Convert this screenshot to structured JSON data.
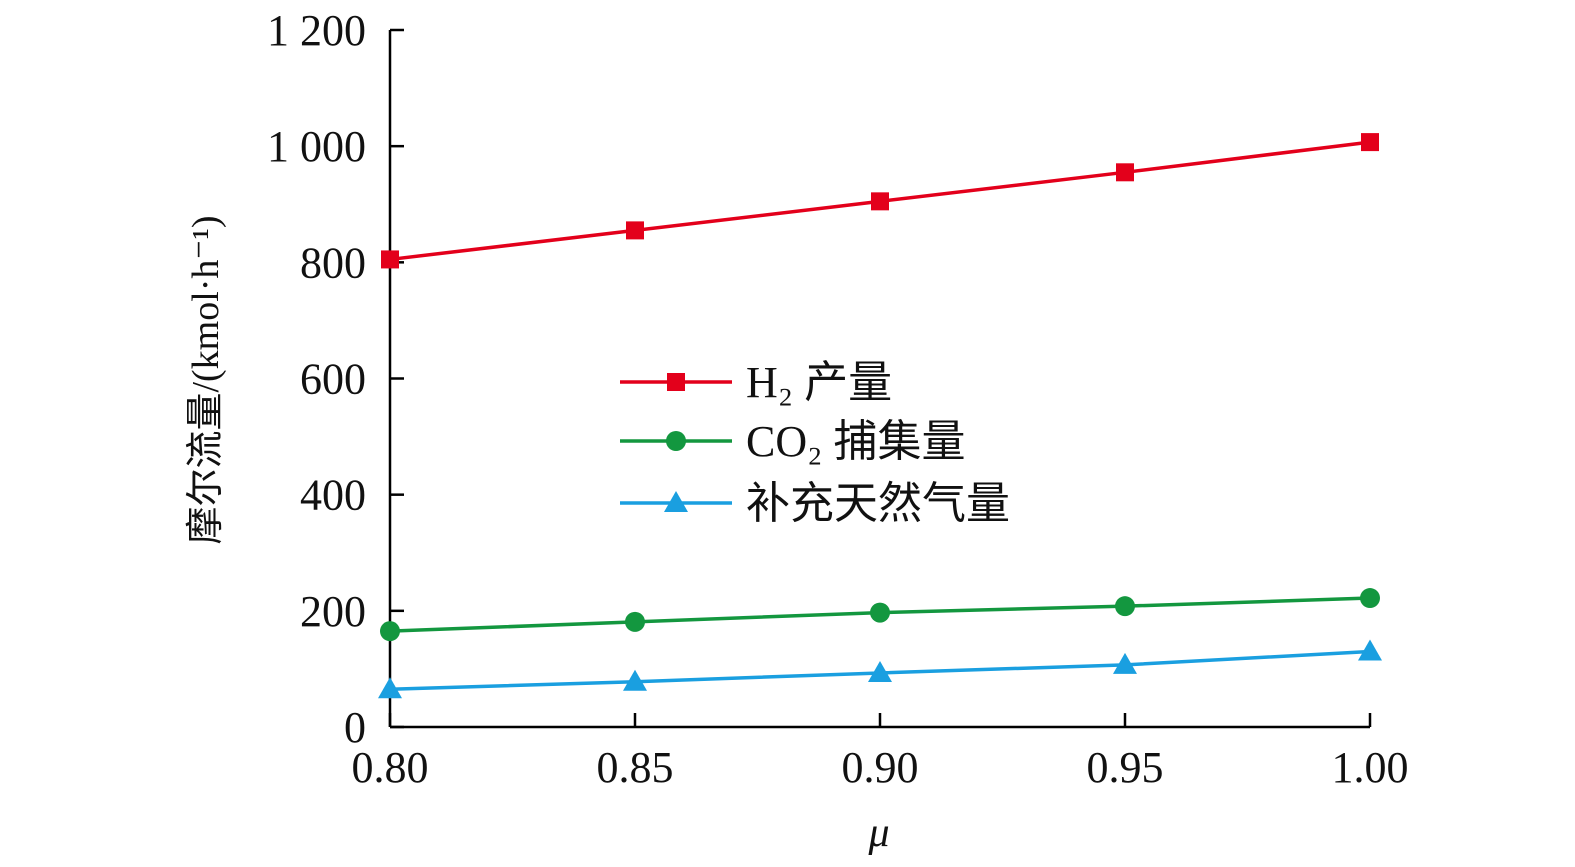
{
  "chart_data": {
    "type": "line",
    "title": "",
    "xlabel": "μ",
    "ylabel": "摩尔流量/(kmol·h⁻¹)",
    "x": [
      0.8,
      0.85,
      0.9,
      0.95,
      1.0
    ],
    "xlim": [
      0.8,
      1.0
    ],
    "ylim": [
      0,
      1200
    ],
    "x_tick_labels": [
      "0.80",
      "0.85",
      "0.90",
      "0.95",
      "1.00"
    ],
    "y_ticks": [
      0,
      200,
      400,
      600,
      800,
      1000,
      1200
    ],
    "y_tick_labels": [
      "0",
      "200",
      "400",
      "600",
      "800",
      "1 000",
      "1 200"
    ],
    "grid": false,
    "legend_position": "center",
    "series": [
      {
        "name": "H₂ 产量",
        "color": "#e3001b",
        "marker": "square",
        "values": [
          805,
          855,
          905,
          955,
          1007
        ]
      },
      {
        "name": "CO₂ 捕集量",
        "color": "#13973f",
        "marker": "circle",
        "values": [
          165,
          181,
          197,
          208,
          222
        ]
      },
      {
        "name": "补充天然气量",
        "color": "#1a9fe0",
        "marker": "triangle",
        "values": [
          65,
          78,
          93,
          107,
          130
        ]
      }
    ]
  }
}
